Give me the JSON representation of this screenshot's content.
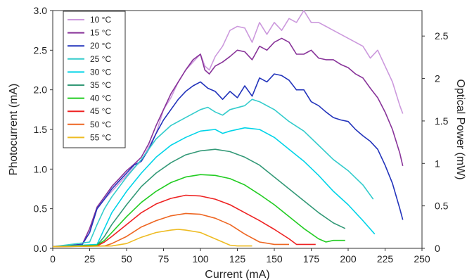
{
  "chart_data": {
    "type": "line",
    "xlabel": "Current (mA)",
    "ylabel": "Photocurrent (mA)",
    "y2label": "Optical Power (mW)",
    "xlim": [
      0,
      250
    ],
    "ylim": [
      0,
      3.0
    ],
    "y2lim": [
      0,
      2.8
    ],
    "xticks": [
      "0",
      "25",
      "50",
      "75",
      "100",
      "125",
      "150",
      "175",
      "200",
      "225",
      "250"
    ],
    "yticks": [
      "0.0",
      "0.5",
      "1.0",
      "1.5",
      "2.0",
      "2.5",
      "3.0"
    ],
    "y2ticks": [
      "0",
      "0.5",
      "1",
      "1.5",
      "2",
      "2.5"
    ],
    "grid": false,
    "legend_position": "top-left",
    "series": [
      {
        "name": "10 °C",
        "color": "#cc99dd",
        "x": [
          0,
          20,
          25,
          30,
          35,
          40,
          45,
          50,
          55,
          60,
          65,
          70,
          75,
          80,
          85,
          90,
          95,
          100,
          103,
          106,
          110,
          115,
          120,
          125,
          130,
          135,
          140,
          145,
          150,
          155,
          160,
          165,
          170,
          175,
          180,
          185,
          190,
          195,
          200,
          205,
          210,
          215,
          220,
          225,
          230,
          235,
          237
        ],
        "y": [
          0.02,
          0.05,
          0.25,
          0.5,
          0.62,
          0.72,
          0.82,
          0.92,
          1.02,
          1.1,
          1.28,
          1.45,
          1.75,
          1.9,
          2.1,
          2.25,
          2.35,
          2.45,
          2.3,
          2.25,
          2.42,
          2.55,
          2.75,
          2.8,
          2.78,
          2.6,
          2.85,
          2.7,
          2.85,
          2.75,
          2.9,
          2.85,
          3.0,
          2.85,
          2.85,
          2.8,
          2.75,
          2.7,
          2.65,
          2.6,
          2.55,
          2.4,
          2.5,
          2.3,
          2.1,
          1.8,
          1.7
        ]
      },
      {
        "name": "15 °C",
        "color": "#883399",
        "x": [
          0,
          20,
          25,
          30,
          35,
          40,
          45,
          50,
          55,
          60,
          65,
          70,
          75,
          80,
          85,
          90,
          95,
          100,
          103,
          106,
          110,
          115,
          120,
          125,
          130,
          135,
          140,
          145,
          150,
          155,
          160,
          165,
          170,
          175,
          180,
          185,
          190,
          195,
          200,
          205,
          210,
          215,
          220,
          225,
          230,
          235,
          237
        ],
        "y": [
          0.02,
          0.05,
          0.25,
          0.52,
          0.65,
          0.78,
          0.88,
          0.98,
          1.06,
          1.15,
          1.32,
          1.55,
          1.75,
          1.95,
          2.1,
          2.25,
          2.38,
          2.45,
          2.25,
          2.2,
          2.3,
          2.35,
          2.42,
          2.5,
          2.48,
          2.38,
          2.55,
          2.5,
          2.6,
          2.65,
          2.6,
          2.45,
          2.45,
          2.5,
          2.4,
          2.38,
          2.38,
          2.32,
          2.28,
          2.2,
          2.15,
          2.02,
          1.9,
          1.72,
          1.5,
          1.2,
          1.04
        ]
      },
      {
        "name": "20 °C",
        "color": "#2233bb",
        "x": [
          0,
          20,
          25,
          30,
          35,
          40,
          45,
          50,
          55,
          60,
          65,
          70,
          75,
          80,
          85,
          90,
          95,
          100,
          105,
          110,
          115,
          120,
          125,
          130,
          135,
          140,
          145,
          150,
          155,
          160,
          165,
          170,
          175,
          180,
          185,
          190,
          195,
          200,
          205,
          210,
          215,
          220,
          225,
          230,
          235,
          237
        ],
        "y": [
          0.02,
          0.05,
          0.2,
          0.5,
          0.62,
          0.75,
          0.85,
          0.95,
          1.05,
          1.1,
          1.25,
          1.45,
          1.62,
          1.75,
          1.88,
          1.98,
          2.05,
          2.1,
          2.02,
          1.98,
          1.88,
          1.98,
          1.9,
          2.05,
          1.92,
          2.15,
          2.1,
          2.2,
          2.18,
          2.12,
          2.0,
          2.0,
          1.85,
          1.8,
          1.72,
          1.65,
          1.62,
          1.6,
          1.5,
          1.42,
          1.35,
          1.25,
          1.05,
          0.82,
          0.5,
          0.36
        ]
      },
      {
        "name": "25 °C",
        "color": "#33cccc",
        "x": [
          0,
          25,
          30,
          35,
          40,
          50,
          60,
          70,
          80,
          90,
          100,
          105,
          110,
          115,
          120,
          130,
          135,
          140,
          150,
          160,
          170,
          180,
          190,
          200,
          210,
          217
        ],
        "y": [
          0.02,
          0.08,
          0.3,
          0.5,
          0.65,
          0.9,
          1.12,
          1.38,
          1.55,
          1.65,
          1.75,
          1.78,
          1.72,
          1.68,
          1.75,
          1.8,
          1.88,
          1.85,
          1.75,
          1.6,
          1.48,
          1.3,
          1.12,
          0.98,
          0.8,
          0.62
        ]
      },
      {
        "name": "30 °C",
        "color": "#00d4e8",
        "x": [
          0,
          30,
          35,
          40,
          50,
          60,
          70,
          80,
          90,
          100,
          110,
          115,
          120,
          130,
          140,
          150,
          160,
          170,
          180,
          190,
          200,
          210,
          218
        ],
        "y": [
          0.02,
          0.05,
          0.25,
          0.45,
          0.72,
          0.95,
          1.15,
          1.3,
          1.4,
          1.48,
          1.5,
          1.45,
          1.48,
          1.52,
          1.5,
          1.4,
          1.25,
          1.1,
          0.92,
          0.72,
          0.55,
          0.35,
          0.18
        ]
      },
      {
        "name": "35 °C",
        "color": "#339977",
        "x": [
          0,
          30,
          35,
          40,
          50,
          60,
          70,
          80,
          90,
          100,
          110,
          120,
          130,
          140,
          150,
          160,
          170,
          180,
          190,
          198
        ],
        "y": [
          0.02,
          0.04,
          0.15,
          0.3,
          0.55,
          0.78,
          0.95,
          1.08,
          1.18,
          1.23,
          1.25,
          1.22,
          1.15,
          1.05,
          0.9,
          0.75,
          0.6,
          0.45,
          0.32,
          0.25
        ]
      },
      {
        "name": "40 °C",
        "color": "#22cc22",
        "x": [
          0,
          30,
          35,
          40,
          50,
          60,
          70,
          80,
          90,
          100,
          110,
          120,
          130,
          140,
          150,
          160,
          170,
          180,
          185,
          190,
          198
        ],
        "y": [
          0.02,
          0.04,
          0.1,
          0.2,
          0.4,
          0.58,
          0.72,
          0.83,
          0.9,
          0.93,
          0.92,
          0.88,
          0.8,
          0.68,
          0.55,
          0.4,
          0.25,
          0.12,
          0.08,
          0.1,
          0.1
        ]
      },
      {
        "name": "45 °C",
        "color": "#ee2222",
        "x": [
          0,
          30,
          35,
          40,
          50,
          60,
          70,
          80,
          90,
          100,
          110,
          120,
          130,
          140,
          150,
          160,
          165,
          170,
          175,
          178
        ],
        "y": [
          0.02,
          0.03,
          0.08,
          0.15,
          0.3,
          0.45,
          0.56,
          0.63,
          0.67,
          0.66,
          0.62,
          0.55,
          0.45,
          0.35,
          0.24,
          0.12,
          0.05,
          0.05,
          0.05,
          0.05
        ]
      },
      {
        "name": "50 °C",
        "color": "#ee6622",
        "x": [
          0,
          35,
          40,
          50,
          60,
          70,
          80,
          90,
          100,
          110,
          120,
          130,
          140,
          150,
          155,
          160
        ],
        "y": [
          0.02,
          0.03,
          0.06,
          0.15,
          0.27,
          0.35,
          0.41,
          0.44,
          0.43,
          0.38,
          0.3,
          0.18,
          0.08,
          0.05,
          0.05,
          0.05
        ]
      },
      {
        "name": "55 °C",
        "color": "#eebb22",
        "x": [
          0,
          40,
          50,
          60,
          70,
          80,
          85,
          90,
          100,
          110,
          120,
          125,
          130,
          135
        ],
        "y": [
          0.02,
          0.03,
          0.06,
          0.14,
          0.2,
          0.23,
          0.24,
          0.23,
          0.2,
          0.12,
          0.04,
          0.03,
          0.03,
          0.03
        ]
      }
    ]
  }
}
